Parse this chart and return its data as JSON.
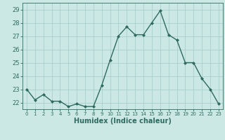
{
  "x": [
    0,
    1,
    2,
    3,
    4,
    5,
    6,
    7,
    8,
    9,
    10,
    11,
    12,
    13,
    14,
    15,
    16,
    17,
    18,
    19,
    20,
    21,
    22,
    23
  ],
  "y": [
    23.0,
    22.2,
    22.6,
    22.1,
    22.1,
    21.7,
    21.9,
    21.7,
    21.7,
    23.3,
    25.2,
    27.0,
    27.7,
    27.1,
    27.1,
    28.0,
    28.9,
    27.1,
    26.7,
    25.0,
    25.0,
    23.8,
    23.0,
    21.9
  ],
  "xlabel": "Humidex (Indice chaleur)",
  "ylim": [
    21.5,
    29.5
  ],
  "xlim": [
    -0.5,
    23.5
  ],
  "yticks": [
    22,
    23,
    24,
    25,
    26,
    27,
    28,
    29
  ],
  "xticks": [
    0,
    1,
    2,
    3,
    4,
    5,
    6,
    7,
    8,
    9,
    10,
    11,
    12,
    13,
    14,
    15,
    16,
    17,
    18,
    19,
    20,
    21,
    22,
    23
  ],
  "line_color": "#2e6b5e",
  "marker_color": "#2e6b5e",
  "bg_color": "#cce8e4",
  "grid_color": "#aacfca",
  "tick_label_color": "#2e6b5e",
  "xlabel_color": "#2e6b5e",
  "marker": "D",
  "marker_size": 2.0,
  "line_width": 1.0
}
